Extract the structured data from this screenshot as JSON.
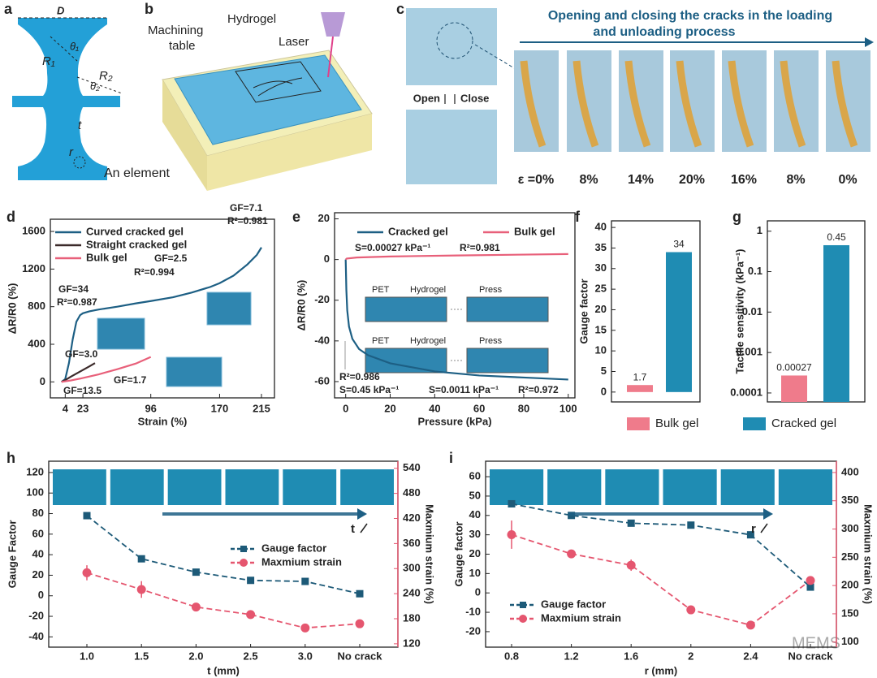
{
  "panel_a": {
    "label": "a",
    "texts": [
      "D",
      "θ₁",
      "R₁",
      "R₂",
      "θ₂",
      "t",
      "r",
      "An element"
    ]
  },
  "panel_b": {
    "label": "b",
    "texts": [
      "Machining",
      "table",
      "Hydrogel",
      "Laser"
    ]
  },
  "panel_c": {
    "label": "c",
    "title": [
      "Opening and closing the cracks in the loading",
      "and unloading process"
    ],
    "open": "Open",
    "close": "Close",
    "strains": [
      "ε =0%",
      "8%",
      "14%",
      "20%",
      "16%",
      "8%",
      "0%"
    ]
  },
  "watermark": "MEMS",
  "chart_data": [
    {
      "type": "line",
      "panel": "d",
      "xlabel": "Strain (%)",
      "ylabel": "ΔR/R0 (%)",
      "xlim": [
        -12,
        229
      ],
      "xticks": [
        4,
        23,
        96,
        170,
        215
      ],
      "ylim": [
        -170,
        1730
      ],
      "yticks": [
        0,
        400,
        800,
        1200,
        1600
      ],
      "series": [
        {
          "name": "Curved  cracked gel",
          "color": "#1d5f84",
          "x": [
            0,
            4,
            8,
            12,
            16,
            20,
            23,
            30,
            40,
            60,
            80,
            96,
            120,
            140,
            160,
            170,
            185,
            200,
            210,
            215
          ],
          "values": [
            0,
            30,
            200,
            450,
            640,
            710,
            730,
            750,
            770,
            800,
            835,
            860,
            900,
            950,
            1010,
            1050,
            1130,
            1250,
            1350,
            1430
          ]
        },
        {
          "name": "Straight cracked gel",
          "color": "#3b2a2a",
          "x": [
            0,
            5,
            10,
            20,
            30,
            36
          ],
          "values": [
            0,
            25,
            55,
            110,
            165,
            200
          ]
        },
        {
          "name": "Bulk gel",
          "color": "#e8607a",
          "x": [
            0,
            10,
            20,
            40,
            60,
            80,
            96
          ],
          "values": [
            0,
            15,
            35,
            80,
            135,
            195,
            265
          ]
        }
      ],
      "annotations": [
        "GF=7.1",
        "R²=0.981",
        "GF=2.5",
        "R²=0.994",
        "GF=34",
        "R²=0.987",
        "GF=3.0",
        "GF=13.5",
        "GF=1.7"
      ]
    },
    {
      "type": "line",
      "panel": "e",
      "xlabel": "Pressure (kPa)",
      "ylabel": "ΔR/R0 (%)",
      "xlim": [
        -5,
        103
      ],
      "xticks": [
        0,
        20,
        40,
        60,
        80,
        100
      ],
      "ylim": [
        -68,
        23
      ],
      "yticks": [
        -60,
        -40,
        -20,
        0,
        20
      ],
      "series": [
        {
          "name": "Cracked gel",
          "color": "#1d5f84",
          "x": [
            0,
            0.3,
            0.7,
            1.5,
            3,
            6,
            10,
            20,
            30,
            40,
            60,
            80,
            100
          ],
          "values": [
            0,
            -15,
            -25,
            -33,
            -39,
            -44,
            -47,
            -51,
            -53,
            -55,
            -57,
            -58,
            -59
          ]
        },
        {
          "name": "Bulk gel",
          "color": "#e8607a",
          "x": [
            0,
            0.5,
            5,
            20,
            50,
            100
          ],
          "values": [
            0,
            0.5,
            1,
            1.5,
            2,
            2.7
          ]
        }
      ],
      "annotations": [
        "S=0.00027 kPa⁻¹",
        "R²=0.981",
        "R²=0.986",
        "S=0.45 kPa⁻¹",
        "S=0.0011 kPa⁻¹",
        "R²=0.972"
      ],
      "inset_labels": [
        "PET",
        "Hydrogel",
        "Press",
        "PET",
        "Hydrogel",
        "Press"
      ]
    },
    {
      "type": "bar",
      "panel": "f",
      "ylabel": "Gauge factor",
      "ylim": [
        -2.4,
        41.6
      ],
      "yticks": [
        0,
        5,
        10,
        15,
        20,
        25,
        30,
        35,
        40
      ],
      "series": [
        {
          "name": "Bulk gel",
          "color": "#ef7b8b",
          "values": [
            1.7
          ]
        },
        {
          "name": "Cracked gel",
          "color": "#1f8cb3",
          "values": [
            34
          ]
        }
      ]
    },
    {
      "type": "bar",
      "panel": "g",
      "ylabel": "Tactile sensitivity (kPa⁻¹)",
      "log_scale": true,
      "ylim": [
        6e-05,
        1.8
      ],
      "yticks": [
        0.0001,
        0.001,
        0.01,
        0.1,
        1
      ],
      "series": [
        {
          "color": "#ef7b8b",
          "values": [
            0.00027
          ]
        },
        {
          "color": "#1f8cb3",
          "values": [
            0.45
          ]
        }
      ]
    },
    {
      "type": "line",
      "panel": "h",
      "xlabel": "t (mm)",
      "ylabel": "Gauge Factor",
      "y2label": "Maxmium strain (%)",
      "categories": [
        "1.0",
        "1.5",
        "2.0",
        "2.5",
        "3.0",
        "No crack"
      ],
      "ylim": [
        -50,
        131
      ],
      "yticks": [
        -40,
        -20,
        0,
        20,
        40,
        60,
        80,
        100,
        120
      ],
      "y2lim": [
        112,
        557
      ],
      "y2ticks": [
        120,
        180,
        240,
        300,
        360,
        420,
        480,
        540
      ],
      "annotation": "t",
      "series": [
        {
          "name": "Gauge factor",
          "color": "#1d5a78",
          "marker": "square",
          "values": [
            78,
            36,
            23,
            15,
            14,
            2
          ]
        },
        {
          "name": "Maxmium strain",
          "color": "#e5566f",
          "marker": "circle",
          "axis": "y2",
          "values": [
            290,
            250,
            208,
            190,
            158,
            168
          ],
          "errors": [
            18,
            20,
            5,
            4,
            4,
            4
          ]
        }
      ]
    },
    {
      "type": "line",
      "panel": "i",
      "xlabel": "r (mm)",
      "ylabel": "Gauge factor",
      "y2label": "Maxmium strain (%)",
      "categories": [
        "0.8",
        "1.2",
        "1.6",
        "2",
        "2.4",
        "No crack"
      ],
      "ylim": [
        -28,
        68
      ],
      "yticks": [
        -20,
        -10,
        0,
        10,
        20,
        30,
        40,
        50,
        60
      ],
      "y2lim": [
        91,
        420
      ],
      "y2ticks": [
        100,
        150,
        200,
        250,
        300,
        350,
        400
      ],
      "annotation": "r",
      "series": [
        {
          "name": "Gauge factor",
          "color": "#1d5a78",
          "marker": "square",
          "values": [
            46,
            40,
            36,
            35,
            30,
            3
          ]
        },
        {
          "name": "Maxmium strain",
          "color": "#e5566f",
          "marker": "circle",
          "axis": "y2",
          "values": [
            290,
            256,
            236,
            157,
            130,
            209
          ],
          "errors": [
            25,
            6,
            10,
            5,
            6,
            3
          ]
        }
      ]
    }
  ]
}
